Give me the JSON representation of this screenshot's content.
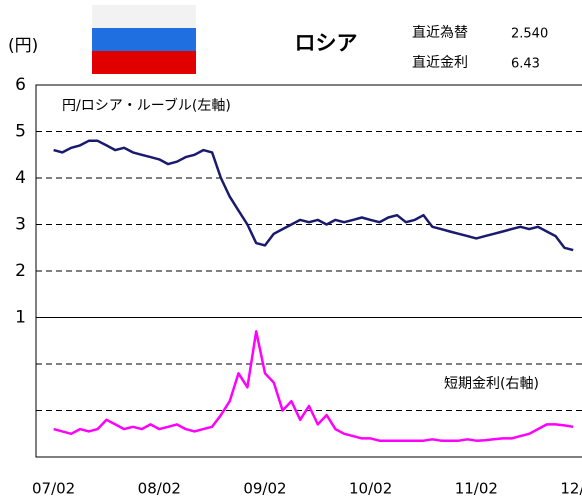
{
  "chart_data": {
    "type": "line",
    "title": "ロシア",
    "y_unit_label": "(円)",
    "latest": [
      {
        "label": "直近為替",
        "value": 2.54,
        "value_label": "2.540"
      },
      {
        "label": "直近金利",
        "value": 6.43
      }
    ],
    "annotations": [
      "円/ロシア・ルーブル(左軸)",
      "短期金利(右軸)"
    ],
    "x": [
      0,
      1,
      2,
      3,
      4,
      5,
      6,
      7,
      8,
      9,
      10,
      11,
      12,
      13,
      14,
      15,
      16,
      17,
      18,
      19,
      20,
      21,
      22,
      23,
      24,
      25,
      26,
      27,
      28,
      29,
      30,
      31,
      32,
      33,
      34,
      35,
      36,
      37,
      38,
      39,
      40,
      41,
      42,
      43,
      44,
      45,
      46,
      47,
      48,
      49,
      50,
      51,
      52,
      53,
      54,
      55,
      56,
      57,
      58,
      59
    ],
    "series": [
      {
        "name": "円/ロシア・ルーブル(左軸)",
        "color": "#1a1a6e",
        "axis": "y",
        "values": [
          4.6,
          4.55,
          4.65,
          4.7,
          4.8,
          4.8,
          4.7,
          4.6,
          4.65,
          4.55,
          4.5,
          4.45,
          4.4,
          4.3,
          4.35,
          4.45,
          4.5,
          4.6,
          4.55,
          4.0,
          3.6,
          3.3,
          3.0,
          2.6,
          2.55,
          2.8,
          2.9,
          3.0,
          3.1,
          3.05,
          3.1,
          3.0,
          3.1,
          3.05,
          3.1,
          3.15,
          3.1,
          3.05,
          3.15,
          3.2,
          3.05,
          3.1,
          3.2,
          2.95,
          2.9,
          2.85,
          2.8,
          2.75,
          2.7,
          2.75,
          2.8,
          2.85,
          2.9,
          2.95,
          2.9,
          2.95,
          2.85,
          2.75,
          2.5,
          2.45
        ]
      },
      {
        "name": "短期金利(右軸)",
        "color": "#ff00ff",
        "axis": "y2",
        "values": [
          6,
          5.5,
          5,
          6,
          5.5,
          6,
          8,
          7,
          6,
          6.5,
          6,
          7,
          6,
          6.5,
          7,
          6,
          5.5,
          6,
          6.5,
          9,
          12,
          18,
          15,
          27,
          18,
          16,
          10,
          12,
          8,
          11,
          7,
          9,
          6,
          5,
          4.5,
          4,
          4,
          3.5,
          3.5,
          3.5,
          3.5,
          3.5,
          3.5,
          3.8,
          3.5,
          3.5,
          3.5,
          3.8,
          3.5,
          3.6,
          3.8,
          4,
          4,
          4.5,
          5,
          6,
          7,
          7,
          6.8,
          6.5
        ]
      }
    ],
    "xlim": [
      -2,
      60
    ],
    "xticks": [
      {
        "value": 0,
        "label": "07/02"
      },
      {
        "value": 12,
        "label": "08/02"
      },
      {
        "value": 24,
        "label": "09/02"
      },
      {
        "value": 36,
        "label": "10/02"
      },
      {
        "value": 48,
        "label": "11/02"
      },
      {
        "value": 60,
        "label": "12/02"
      }
    ],
    "ylim": [
      -2,
      6
    ],
    "yticks": [
      1,
      2,
      3,
      4,
      5,
      6
    ],
    "y2lim": [
      0,
      80
    ],
    "y2ticks": [
      10,
      20
    ],
    "grid": true
  }
}
